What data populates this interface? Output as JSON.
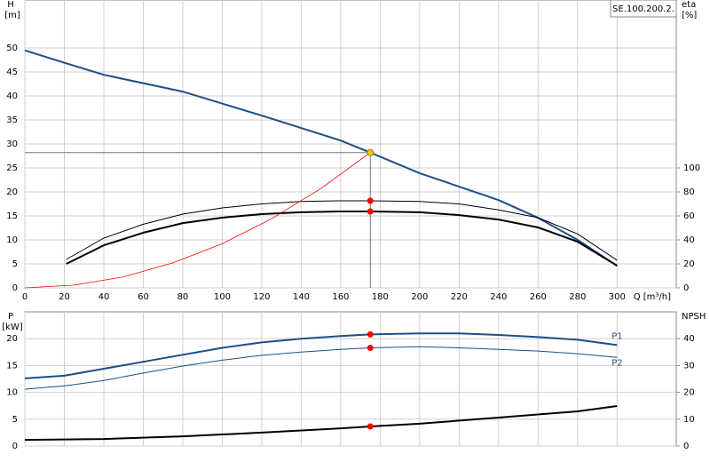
{
  "chart_data": [
    {
      "type": "line",
      "label_box": "SE.100.200.2.",
      "y_label": "H",
      "y_unit": "[m]",
      "y2_label": "eta",
      "y2_unit": "[%]",
      "x_label": "Q [m³/h]",
      "xlim": [
        0,
        330
      ],
      "xticks": [
        0,
        20,
        40,
        60,
        80,
        100,
        120,
        140,
        160,
        180,
        200,
        220,
        240,
        260,
        280,
        300
      ],
      "ylim": [
        0,
        60
      ],
      "yticks": [
        0,
        5,
        10,
        15,
        20,
        25,
        30,
        35,
        40,
        45,
        50
      ],
      "y2lim": [
        0,
        240
      ],
      "y2ticks": [
        0,
        20,
        40,
        60,
        80,
        100
      ],
      "x_tick_labels": true,
      "grid": true,
      "series": [
        {
          "color": "#1a4f8a",
          "width": 2,
          "x": [
            0,
            21,
            40,
            80,
            120,
            160,
            175,
            200,
            240,
            260,
            280,
            300
          ],
          "values": [
            49.5,
            46.8,
            44.4,
            40.9,
            35.9,
            30.7,
            28.2,
            23.9,
            18.3,
            14.6,
            10,
            4.6
          ]
        },
        {
          "color": "#000000",
          "width": 1,
          "axis": "y2",
          "x": [
            21,
            40,
            60,
            80,
            100,
            120,
            140,
            160,
            175,
            200,
            220,
            240,
            260,
            280,
            300
          ],
          "values": [
            23.7,
            41.5,
            53,
            61.5,
            66.7,
            70,
            72,
            72.6,
            72.6,
            72,
            70,
            65,
            58.5,
            45,
            23
          ]
        },
        {
          "color": "#000000",
          "width": 2,
          "axis": "y2",
          "x": [
            21,
            40,
            60,
            80,
            100,
            120,
            140,
            160,
            175,
            200,
            220,
            240,
            260,
            280,
            300
          ],
          "values": [
            20,
            35.5,
            46,
            54,
            58.5,
            61.5,
            63,
            63.7,
            63.7,
            63,
            60.7,
            57,
            50.4,
            38.5,
            18.5
          ]
        },
        {
          "color": "#ff0000",
          "width": 0.8,
          "x": [
            0,
            25,
            50,
            75,
            100,
            125,
            150,
            175
          ],
          "values": [
            0,
            0.58,
            2.3,
            5.2,
            9.2,
            14.4,
            20.7,
            28.2
          ]
        }
      ],
      "points": [
        {
          "x": 175,
          "y": 28.2,
          "color": "#f5c518",
          "guides": true
        },
        {
          "x": 175,
          "y": 72.6,
          "axis": "y2",
          "color": "#ff0000"
        },
        {
          "x": 175,
          "y": 63.7,
          "axis": "y2",
          "color": "#ff0000"
        }
      ]
    },
    {
      "type": "line",
      "y_label": "P",
      "y_unit": "[kW]",
      "y2_label": "NPSH",
      "xlim": [
        0,
        330
      ],
      "xticks": [
        0,
        20,
        40,
        60,
        80,
        100,
        120,
        140,
        160,
        180,
        200,
        220,
        240,
        260,
        280,
        300
      ],
      "ylim": [
        0,
        25
      ],
      "yticks": [
        0,
        5,
        10,
        15,
        20
      ],
      "y2lim": [
        0,
        50
      ],
      "y2ticks": [
        0,
        10,
        20,
        30,
        40
      ],
      "x_tick_labels": false,
      "grid": true,
      "series": [
        {
          "name": "P1",
          "color": "#1a4f8a",
          "width": 2,
          "x": [
            0,
            20,
            40,
            60,
            80,
            100,
            120,
            140,
            160,
            175,
            200,
            220,
            240,
            260,
            280,
            300
          ],
          "values": [
            12.6,
            13.1,
            14.4,
            15.7,
            17,
            18.3,
            19.3,
            20,
            20.5,
            20.8,
            21,
            21,
            20.7,
            20.3,
            19.8,
            18.8
          ]
        },
        {
          "name": "P2",
          "color": "#1a4f8a",
          "width": 1,
          "x": [
            0,
            20,
            40,
            60,
            80,
            100,
            120,
            140,
            160,
            175,
            200,
            220,
            240,
            260,
            280,
            300
          ],
          "values": [
            10.6,
            11.2,
            12.2,
            13.6,
            14.9,
            16,
            16.9,
            17.5,
            18,
            18.3,
            18.5,
            18.3,
            18,
            17.7,
            17.2,
            16.5
          ]
        },
        {
          "color": "#000000",
          "width": 2,
          "axis": "y2",
          "x": [
            0,
            40,
            80,
            120,
            160,
            175,
            200,
            240,
            280,
            300
          ],
          "values": [
            2.3,
            2.6,
            3.6,
            5,
            6.6,
            7.3,
            8.3,
            10.6,
            12.9,
            14.9
          ]
        }
      ],
      "points": [
        {
          "x": 175,
          "y": 20.8,
          "color": "#ff0000"
        },
        {
          "x": 175,
          "y": 18.3,
          "color": "#ff0000"
        },
        {
          "x": 175,
          "y": 7.3,
          "axis": "y2",
          "color": "#ff0000"
        }
      ]
    }
  ]
}
